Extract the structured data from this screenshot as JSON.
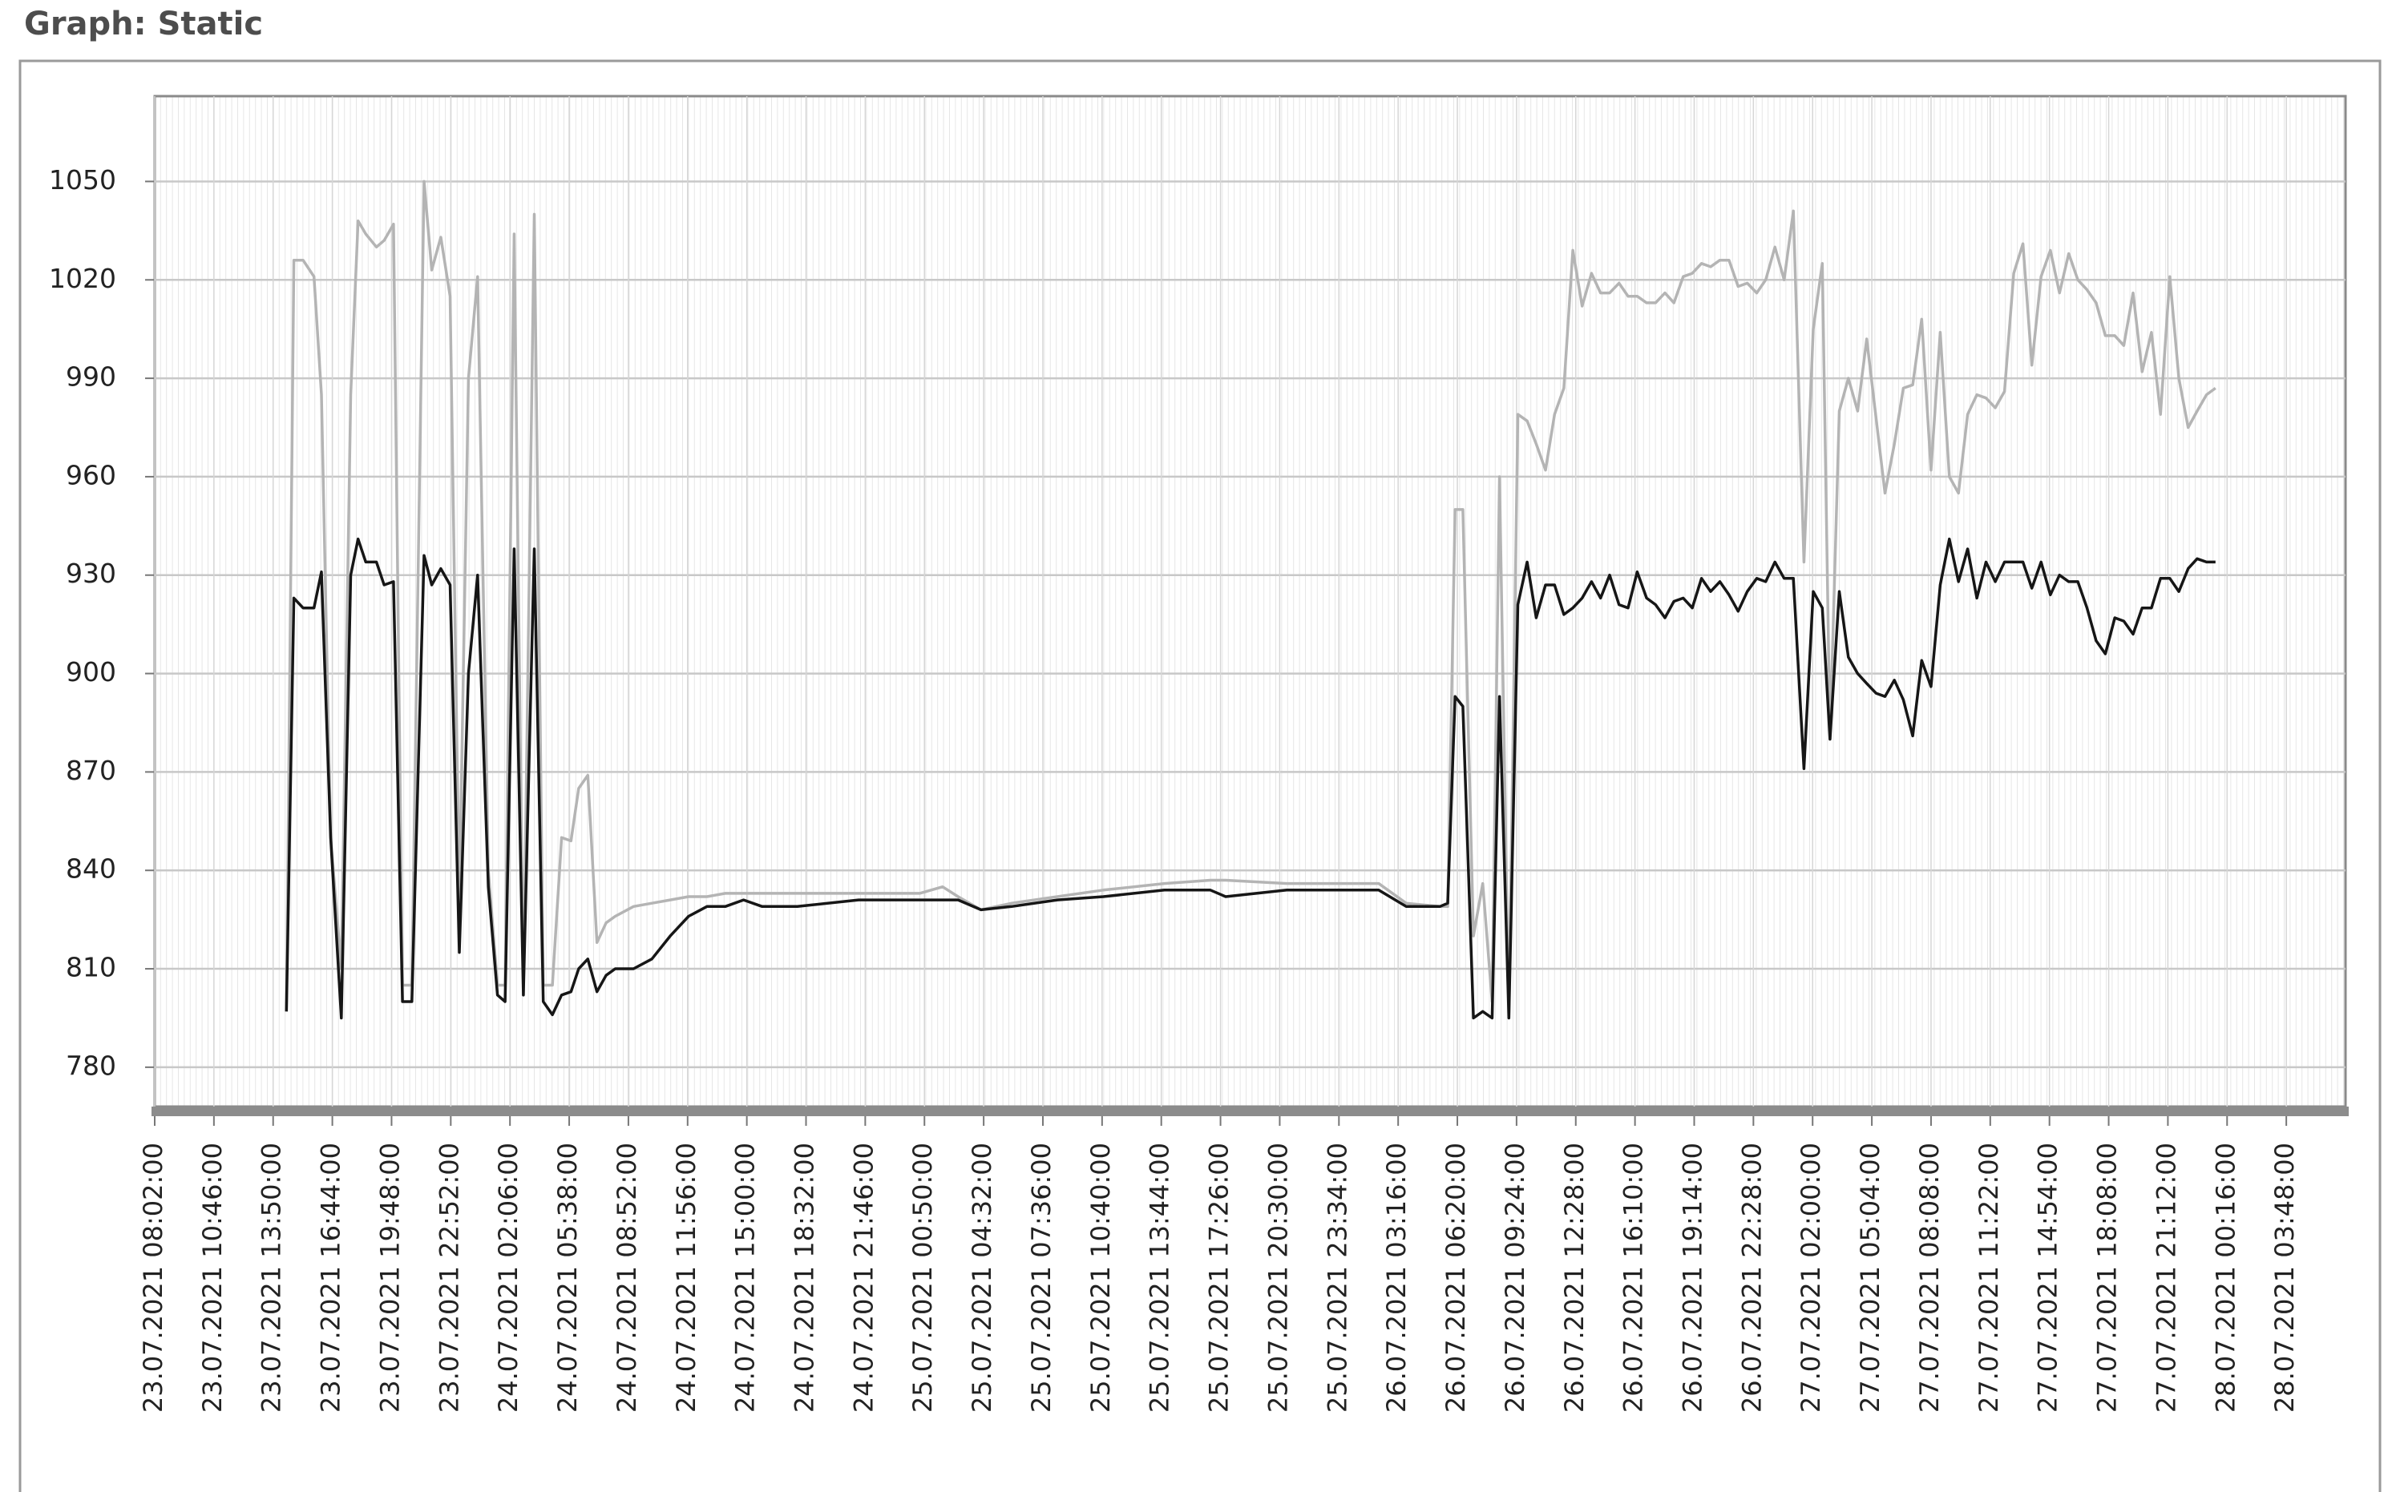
{
  "chart_data": {
    "type": "line",
    "title": "Graph: Static",
    "x": [
      "23.07.2021 14:29:00",
      "23.07.2021 14:51:00",
      "23.07.2021 15:18:00",
      "23.07.2021 15:50:00",
      "23.07.2021 16:12:00",
      "23.07.2021 16:39:00",
      "23.07.2021 17:12:00",
      "23.07.2021 17:41:00",
      "23.07.2021 18:04:00",
      "23.07.2021 18:28:00",
      "23.07.2021 19:01:00",
      "23.07.2021 19:25:00",
      "23.07.2021 19:54:00",
      "23.07.2021 20:22:00",
      "23.07.2021 20:51:00",
      "23.07.2021 21:29:00",
      "23.07.2021 21:53:00",
      "23.07.2021 22:21:00",
      "23.07.2021 22:50:00",
      "23.07.2021 23:20:00",
      "23.07.2021 23:50:00",
      "24.07.2021 00:20:00",
      "24.07.2021 00:55:00",
      "24.07.2021 01:25:00",
      "24.07.2021 01:50:00",
      "24.07.2021 02:21:00",
      "24.07.2021 02:54:00",
      "24.07.2021 03:33:00",
      "24.07.2021 04:05:00",
      "24.07.2021 04:38:00",
      "24.07.2021 05:11:00",
      "24.07.2021 05:44:00",
      "24.07.2021 06:09:00",
      "24.07.2021 06:39:00",
      "24.07.2021 07:09:00",
      "24.07.2021 07:39:00",
      "24.07.2021 08:09:00",
      "24.07.2021 09:08:00",
      "24.07.2021 10:05:00",
      "24.07.2021 11:02:00",
      "24.07.2021 11:59:00",
      "24.07.2021 12:56:00",
      "24.07.2021 13:53:00",
      "24.07.2021 14:50:00",
      "24.07.2021 15:55:00",
      "24.07.2021 18:01:00",
      "24.07.2021 21:24:00",
      "25.07.2021 00:35:00",
      "25.07.2021 01:58:00",
      "25.07.2021 02:56:00",
      "25.07.2021 04:22:00",
      "25.07.2021 05:59:00",
      "25.07.2021 08:21:00",
      "25.07.2021 10:44:00",
      "25.07.2021 13:56:00",
      "25.07.2021 16:48:00",
      "25.07.2021 17:42:00",
      "25.07.2021 20:52:00",
      "26.07.2021 02:03:00",
      "26.07.2021 03:41:00",
      "26.07.2021 05:26:00",
      "26.07.2021 05:50:00",
      "26.07.2021 06:13:00",
      "26.07.2021 06:37:00",
      "26.07.2021 07:10:00",
      "26.07.2021 07:39:00",
      "26.07.2021 08:08:00",
      "26.07.2021 08:31:00",
      "26.07.2021 09:00:00",
      "26.07.2021 09:28:00",
      "26.07.2021 09:57:00",
      "26.07.2021 10:25:00",
      "26.07.2021 10:54:00",
      "26.07.2021 11:22:00",
      "26.07.2021 11:51:00",
      "26.07.2021 12:19:00",
      "26.07.2021 12:52:00",
      "26.07.2021 13:27:00",
      "26.07.2021 14:01:00",
      "26.07.2021 14:35:00",
      "26.07.2021 15:10:00",
      "26.07.2021 15:44:00",
      "26.07.2021 16:17:00",
      "26.07.2021 16:46:00",
      "26.07.2021 17:14:00",
      "26.07.2021 17:43:00",
      "26.07.2021 18:11:00",
      "26.07.2021 18:40:00",
      "26.07.2021 19:08:00",
      "26.07.2021 19:38:00",
      "26.07.2021 20:08:00",
      "26.07.2021 20:38:00",
      "26.07.2021 21:08:00",
      "26.07.2021 21:38:00",
      "26.07.2021 22:08:00",
      "26.07.2021 22:40:00",
      "26.07.2021 23:12:00",
      "26.07.2021 23:45:00",
      "27.07.2021 00:18:00",
      "27.07.2021 00:51:00",
      "27.07.2021 01:29:00",
      "27.07.2021 02:02:00",
      "27.07.2021 02:30:00",
      "27.07.2021 02:54:00",
      "27.07.2021 03:23:00",
      "27.07.2021 03:51:00",
      "27.07.2021 04:20:00",
      "27.07.2021 04:48:00",
      "27.07.2021 05:17:00",
      "27.07.2021 05:45:00",
      "27.07.2021 06:14:00",
      "27.07.2021 06:42:00",
      "27.07.2021 07:11:00",
      "27.07.2021 07:39:00",
      "27.07.2021 08:08:00",
      "27.07.2021 08:38:00",
      "27.07.2021 09:08:00",
      "27.07.2021 09:38:00",
      "27.07.2021 10:08:00",
      "27.07.2021 10:38:00",
      "27.07.2021 11:08:00",
      "27.07.2021 11:40:00",
      "27.07.2021 12:13:00",
      "27.07.2021 12:46:00",
      "27.07.2021 13:19:00",
      "27.07.2021 13:51:00",
      "27.07.2021 14:24:00",
      "27.07.2021 14:57:00",
      "27.07.2021 15:27:00",
      "27.07.2021 15:57:00",
      "27.07.2021 16:27:00",
      "27.07.2021 16:57:00",
      "27.07.2021 17:27:00",
      "27.07.2021 17:57:00",
      "27.07.2021 18:27:00",
      "27.07.2021 18:55:00",
      "27.07.2021 19:24:00",
      "27.07.2021 19:52:00",
      "27.07.2021 20:21:00",
      "27.07.2021 20:49:00",
      "27.07.2021 21:18:00",
      "27.07.2021 21:46:00",
      "27.07.2021 22:15:00",
      "27.07.2021 22:43:00",
      "27.07.2021 23:12:00",
      "27.07.2021 23:40:00"
    ],
    "series": [
      {
        "color": "#b4b4b4",
        "values": [
          797,
          1026,
          1026,
          1021,
          985,
          850,
          810,
          985,
          1038,
          1034,
          1030,
          1032,
          1037,
          805,
          805,
          1050,
          1023,
          1033,
          1015,
          830,
          990,
          1021,
          840,
          805,
          805,
          1034,
          802,
          1040,
          805,
          805,
          850,
          849,
          865,
          869,
          818,
          824,
          826,
          829,
          830,
          831,
          832,
          832,
          833,
          833,
          833,
          833,
          833,
          833,
          835,
          832,
          828,
          830,
          832,
          834,
          836,
          837,
          837,
          836,
          836,
          830,
          829,
          829,
          950,
          950,
          820,
          836,
          800,
          960,
          795,
          979,
          977,
          970,
          962,
          979,
          987,
          1029,
          1012,
          1022,
          1016,
          1016,
          1019,
          1015,
          1015,
          1013,
          1013,
          1016,
          1013,
          1021,
          1022,
          1025,
          1024,
          1026,
          1026,
          1018,
          1019,
          1016,
          1020,
          1030,
          1020,
          1041,
          934,
          1005,
          1025,
          880,
          980,
          990,
          980,
          1002,
          978,
          955,
          970,
          987,
          988,
          1008,
          962,
          1004,
          960,
          955,
          979,
          985,
          984,
          981,
          986,
          1022,
          1031,
          994,
          1021,
          1029,
          1016,
          1028,
          1020,
          1017,
          1013,
          1003,
          1003,
          1000,
          1016,
          992,
          1004,
          979,
          1021,
          990,
          975,
          980,
          985,
          987
        ]
      },
      {
        "color": "#161616",
        "values": [
          797,
          923,
          920,
          920,
          931,
          850,
          795,
          930,
          941,
          934,
          934,
          927,
          928,
          800,
          800,
          936,
          927,
          932,
          927,
          815,
          900,
          930,
          835,
          802,
          800,
          938,
          802,
          938,
          800,
          796,
          802,
          803,
          810,
          813,
          803,
          808,
          810,
          810,
          813,
          820,
          826,
          829,
          829,
          831,
          829,
          829,
          831,
          831,
          831,
          831,
          828,
          829,
          831,
          832,
          834,
          834,
          832,
          834,
          834,
          829,
          829,
          830,
          893,
          890,
          795,
          797,
          795,
          893,
          795,
          921,
          934,
          917,
          927,
          927,
          918,
          920,
          923,
          928,
          923,
          930,
          921,
          920,
          931,
          923,
          921,
          917,
          922,
          923,
          920,
          929,
          925,
          928,
          924,
          919,
          925,
          929,
          928,
          934,
          929,
          929,
          871,
          925,
          920,
          880,
          925,
          905,
          900,
          897,
          894,
          893,
          898,
          892,
          881,
          904,
          896,
          927,
          941,
          928,
          938,
          923,
          934,
          928,
          934,
          934,
          934,
          926,
          934,
          924,
          930,
          928,
          928,
          920,
          910,
          906,
          917,
          916,
          912,
          920,
          920,
          929,
          929,
          925,
          932,
          935,
          934,
          934
        ]
      }
    ],
    "xlim": [
      "23.07.2021 08:02:00",
      "28.07.2021 07:20:00"
    ],
    "xticks": [
      "23.07.2021 08:02:00",
      "23.07.2021 10:46:00",
      "23.07.2021 13:50:00",
      "23.07.2021 16:44:00",
      "23.07.2021 19:48:00",
      "23.07.2021 22:52:00",
      "24.07.2021 02:06:00",
      "24.07.2021 05:38:00",
      "24.07.2021 08:52:00",
      "24.07.2021 11:56:00",
      "24.07.2021 15:00:00",
      "24.07.2021 18:32:00",
      "24.07.2021 21:46:00",
      "25.07.2021 00:50:00",
      "25.07.2021 04:32:00",
      "25.07.2021 07:36:00",
      "25.07.2021 10:40:00",
      "25.07.2021 13:44:00",
      "25.07.2021 17:26:00",
      "25.07.2021 20:30:00",
      "25.07.2021 23:34:00",
      "26.07.2021 03:16:00",
      "26.07.2021 06:20:00",
      "26.07.2021 09:24:00",
      "26.07.2021 12:28:00",
      "26.07.2021 16:10:00",
      "26.07.2021 19:14:00",
      "26.07.2021 22:28:00",
      "27.07.2021 02:00:00",
      "27.07.2021 05:04:00",
      "27.07.2021 08:08:00",
      "27.07.2021 11:22:00",
      "27.07.2021 14:54:00",
      "27.07.2021 18:08:00",
      "27.07.2021 21:12:00",
      "28.07.2021 00:16:00",
      "28.07.2021 03:48:00"
    ],
    "ylim": [
      768,
      1076
    ],
    "yticks": [
      780,
      810,
      840,
      870,
      900,
      930,
      960,
      990,
      1020,
      1050
    ],
    "grid": true
  }
}
